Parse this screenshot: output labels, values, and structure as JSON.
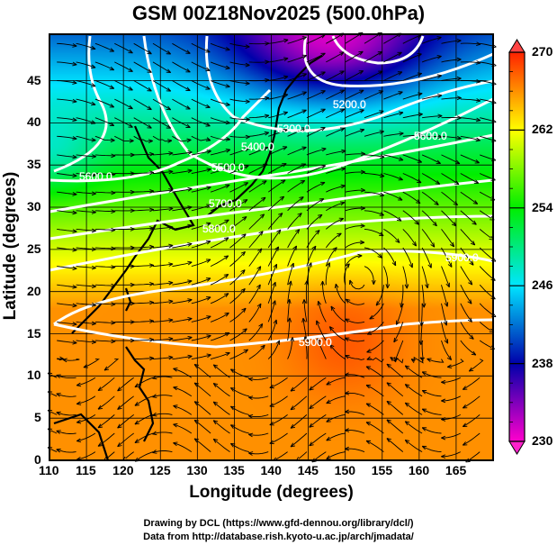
{
  "title": "GSM 00Z18Nov2025 (500.0hPa)",
  "x_axis": {
    "label": "Longitude (degrees)",
    "ticks": [
      "110",
      "115",
      "120",
      "125",
      "130",
      "135",
      "140",
      "145",
      "150",
      "155",
      "160",
      "165"
    ],
    "range": [
      110,
      170
    ]
  },
  "y_axis": {
    "label": "Latitude  (degrees)",
    "ticks": [
      "0",
      "5",
      "10",
      "15",
      "20",
      "25",
      "30",
      "35",
      "40",
      "45"
    ],
    "range": [
      0,
      50.5
    ]
  },
  "colorbar": {
    "ticks": [
      "270",
      "262",
      "254",
      "246",
      "238",
      "230"
    ],
    "min": 230,
    "max": 270,
    "colors": [
      "#ff00cc",
      "#0000aa",
      "#00e5ff",
      "#00ee00",
      "#ffff00",
      "#ff2200"
    ]
  },
  "contour_labels": [
    "5200.0",
    "5300.0",
    "5400.0",
    "5500.0",
    "5600.0",
    "5600.0",
    "5700.0",
    "5800.0",
    "5900.0",
    "5900.0"
  ],
  "credits": [
    "Drawing by DCL (https://www.gfd-dennou.org/library/dcl/)",
    "Data from http://database.rish.kyoto-u.ac.jp/arch/jmadata/"
  ]
}
